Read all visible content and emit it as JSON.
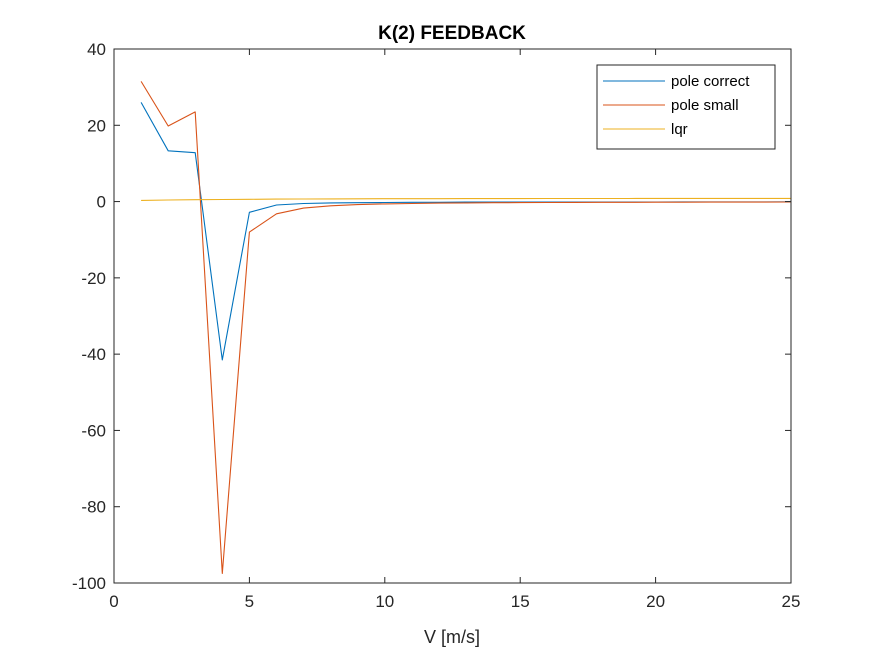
{
  "chart_data": {
    "type": "line",
    "title": "K(2) FEEDBACK",
    "xlabel": "V [m/s]",
    "ylabel": "",
    "xlim": [
      0,
      25
    ],
    "ylim": [
      -100,
      40
    ],
    "xticks": [
      0,
      5,
      10,
      15,
      20,
      25
    ],
    "yticks": [
      -100,
      -80,
      -60,
      -40,
      -20,
      0,
      20,
      40
    ],
    "grid": false,
    "legend_position": "top-right",
    "series": [
      {
        "name": "pole correct",
        "color": "#0072BD",
        "x": [
          1,
          2,
          3,
          4,
          5,
          6,
          7,
          8,
          9,
          10,
          11,
          12,
          13,
          14,
          15,
          16,
          17,
          18,
          19,
          20,
          21,
          22,
          23,
          24,
          25
        ],
        "y": [
          26,
          13.3,
          12.8,
          -41.5,
          -2.8,
          -0.9,
          -0.5,
          -0.35,
          -0.3,
          -0.25,
          -0.2,
          -0.2,
          -0.15,
          -0.15,
          -0.12,
          -0.12,
          -0.1,
          -0.1,
          -0.1,
          -0.1,
          -0.08,
          -0.08,
          -0.08,
          -0.08,
          -0.07
        ]
      },
      {
        "name": "pole small",
        "color": "#D95319",
        "x": [
          1,
          2,
          3,
          4,
          5,
          6,
          7,
          8,
          9,
          10,
          11,
          12,
          13,
          14,
          15,
          16,
          17,
          18,
          19,
          20,
          21,
          22,
          23,
          24,
          25
        ],
        "y": [
          31.5,
          19.8,
          23.5,
          -97.5,
          -8,
          -3.2,
          -1.7,
          -1.1,
          -0.8,
          -0.6,
          -0.5,
          -0.4,
          -0.35,
          -0.3,
          -0.28,
          -0.25,
          -0.22,
          -0.2,
          -0.18,
          -0.17,
          -0.16,
          -0.15,
          -0.14,
          -0.13,
          -0.12
        ]
      },
      {
        "name": "lqr",
        "color": "#EDB120",
        "x": [
          1,
          2,
          3,
          4,
          5,
          6,
          7,
          8,
          9,
          10,
          11,
          12,
          13,
          14,
          15,
          16,
          17,
          18,
          19,
          20,
          21,
          22,
          23,
          24,
          25
        ],
        "y": [
          0.3,
          0.4,
          0.5,
          0.55,
          0.6,
          0.65,
          0.68,
          0.7,
          0.72,
          0.74,
          0.75,
          0.76,
          0.77,
          0.78,
          0.79,
          0.8,
          0.8,
          0.81,
          0.81,
          0.82,
          0.82,
          0.82,
          0.83,
          0.83,
          0.83
        ]
      }
    ]
  }
}
